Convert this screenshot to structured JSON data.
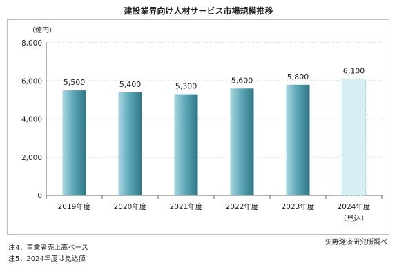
{
  "chart_data": {
    "type": "bar",
    "title": "建設業界向け人材サービス市場規模推移",
    "unit_label": "（億円）",
    "categories": [
      "2019年度",
      "2020年度",
      "2021年度",
      "2022年度",
      "2023年度",
      "2024年度"
    ],
    "category_sublabels": [
      "",
      "",
      "",
      "",
      "",
      "（見込）"
    ],
    "values": [
      5500,
      5400,
      5300,
      5600,
      5800,
      6100
    ],
    "data_labels": [
      "5,500",
      "5,400",
      "5,300",
      "5,600",
      "5,800",
      "6,100"
    ],
    "projected": [
      false,
      false,
      false,
      false,
      false,
      true
    ],
    "ylim": [
      0,
      8000
    ],
    "yticks": [
      0,
      2000,
      4000,
      6000,
      8000
    ],
    "ytick_labels": [
      "0",
      "2,000",
      "4,000",
      "6,000",
      "8,000"
    ],
    "grid": true,
    "colors": {
      "bar_light": "#a8d6e0",
      "bar_mid": "#5fa9ba",
      "bar_dark": "#2f7585",
      "projected_fill": "#d7eef4",
      "projected_border": "#8fc6d4",
      "grid": "#b5b5b5"
    }
  },
  "source": "矢野経済研究所調べ",
  "notes": [
    "注4．事業者売上高ベース",
    "注5．2024年度は見込値"
  ]
}
